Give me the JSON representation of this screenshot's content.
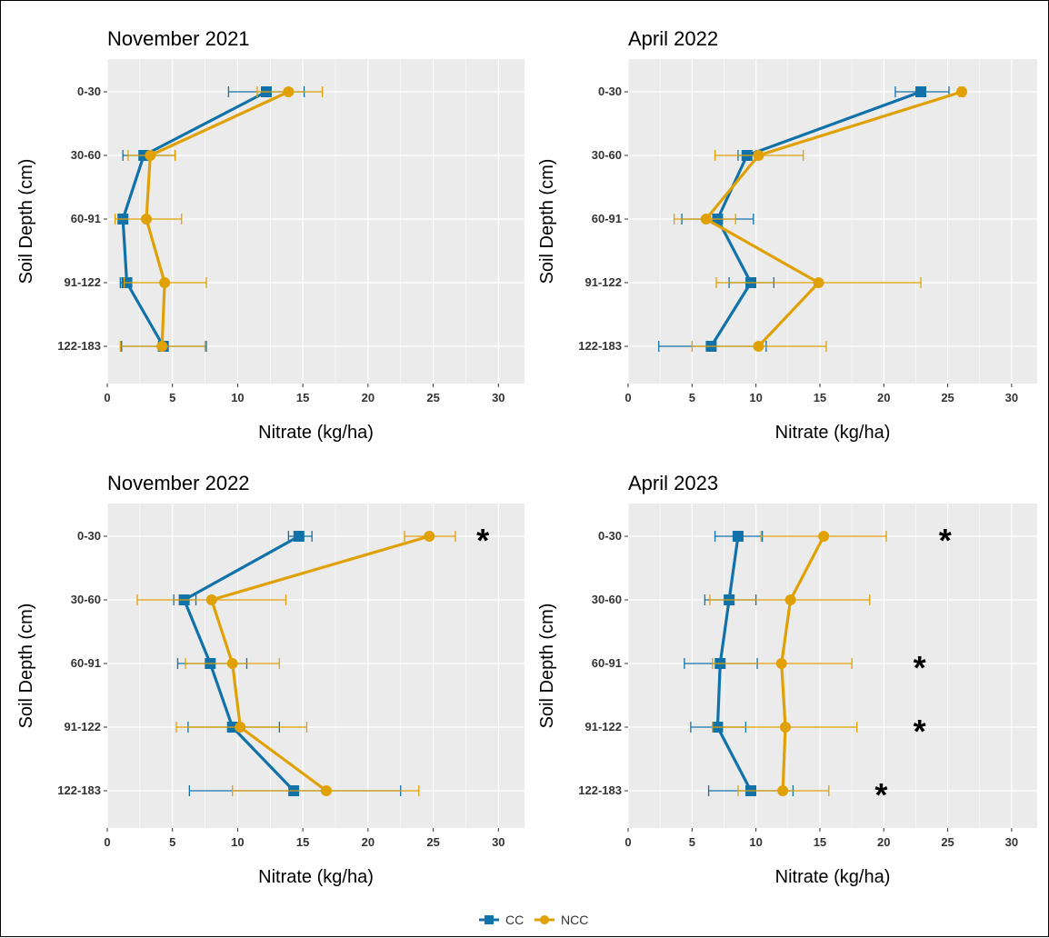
{
  "chart_data": [
    {
      "type": "line",
      "title": "November 2021",
      "xlabel": "Nitrate (kg/ha)",
      "ylabel": "Soil Depth (cm)",
      "xlim": [
        0,
        32
      ],
      "xticks": [
        "0",
        "5",
        "10",
        "15",
        "20",
        "25",
        "30"
      ],
      "categories": [
        "0-30",
        "30-60",
        "60-91",
        "91-122",
        "122-183"
      ],
      "grid": true,
      "series": [
        {
          "name": "CC",
          "values": [
            12.2,
            2.8,
            1.2,
            1.5,
            4.3
          ],
          "err_low": [
            9.3,
            1.2,
            0.9,
            1.0,
            1.1
          ],
          "err_high": [
            15.1,
            5.2,
            1.4,
            1.8,
            7.6
          ]
        },
        {
          "name": "NCC",
          "values": [
            13.9,
            3.3,
            3.0,
            4.4,
            4.2
          ],
          "err_low": [
            11.5,
            1.6,
            0.6,
            1.3,
            1.0
          ],
          "err_high": [
            16.5,
            5.2,
            5.7,
            7.6,
            7.5
          ]
        }
      ],
      "significance": []
    },
    {
      "type": "line",
      "title": "April 2022",
      "xlabel": "Nitrate (kg/ha)",
      "ylabel": "Soil Depth (cm)",
      "xlim": [
        0,
        32
      ],
      "xticks": [
        "0",
        "5",
        "10",
        "15",
        "20",
        "25",
        "30"
      ],
      "categories": [
        "0-30",
        "30-60",
        "60-91",
        "91-122",
        "122-183"
      ],
      "grid": true,
      "series": [
        {
          "name": "CC",
          "values": [
            22.9,
            9.3,
            7.0,
            9.6,
            6.5
          ],
          "err_low": [
            20.9,
            8.6,
            4.2,
            7.9,
            2.4
          ],
          "err_high": [
            25.1,
            10.0,
            9.8,
            11.4,
            10.8
          ]
        },
        {
          "name": "NCC",
          "values": [
            26.1,
            10.2,
            6.1,
            14.9,
            10.2
          ],
          "err_low": [
            25.9,
            6.8,
            3.6,
            6.9,
            5.0
          ],
          "err_high": [
            26.3,
            13.7,
            8.4,
            22.9,
            15.5
          ]
        }
      ],
      "significance": []
    },
    {
      "type": "line",
      "title": "November 2022",
      "xlabel": "Nitrate (kg/ha)",
      "ylabel": "Soil Depth (cm)",
      "xlim": [
        0,
        32
      ],
      "xticks": [
        "0",
        "5",
        "10",
        "15",
        "20",
        "25",
        "30"
      ],
      "categories": [
        "0-30",
        "30-60",
        "60-91",
        "91-122",
        "122-183"
      ],
      "grid": true,
      "series": [
        {
          "name": "CC",
          "values": [
            14.7,
            5.9,
            7.9,
            9.6,
            14.3
          ],
          "err_low": [
            13.9,
            5.1,
            5.4,
            6.2,
            6.3
          ],
          "err_high": [
            15.7,
            6.8,
            10.7,
            13.2,
            22.5
          ]
        },
        {
          "name": "NCC",
          "values": [
            24.7,
            8.0,
            9.6,
            10.2,
            16.8
          ],
          "err_low": [
            22.8,
            2.3,
            6.0,
            5.3,
            9.6
          ],
          "err_high": [
            26.7,
            13.7,
            13.2,
            15.3,
            23.9
          ]
        }
      ],
      "significance": [
        {
          "category": "0-30",
          "label": "*",
          "x": 28.8
        }
      ]
    },
    {
      "type": "line",
      "title": "April 2023",
      "xlabel": "Nitrate (kg/ha)",
      "ylabel": "Soil Depth (cm)",
      "xlim": [
        0,
        32
      ],
      "xticks": [
        "0",
        "5",
        "10",
        "15",
        "20",
        "25",
        "30"
      ],
      "categories": [
        "0-30",
        "30-60",
        "60-91",
        "91-122",
        "122-183"
      ],
      "grid": true,
      "series": [
        {
          "name": "CC",
          "values": [
            8.6,
            7.9,
            7.2,
            7.0,
            9.6
          ],
          "err_low": [
            6.8,
            6.0,
            4.4,
            4.9,
            6.3
          ],
          "err_high": [
            10.5,
            10.0,
            10.1,
            9.2,
            12.9
          ]
        },
        {
          "name": "NCC",
          "values": [
            15.3,
            12.7,
            12.0,
            12.3,
            12.1
          ],
          "err_low": [
            10.4,
            6.4,
            6.6,
            6.6,
            8.6
          ],
          "err_high": [
            20.2,
            18.9,
            17.5,
            17.9,
            15.7
          ]
        }
      ],
      "significance": [
        {
          "category": "0-30",
          "label": "*",
          "x": 24.8
        },
        {
          "category": "60-91",
          "label": "*",
          "x": 22.8
        },
        {
          "category": "91-122",
          "label": "*",
          "x": 22.8
        },
        {
          "category": "122-183",
          "label": "*",
          "x": 19.8
        }
      ]
    }
  ],
  "legend": {
    "position": "bottom",
    "items": [
      {
        "label": "CC",
        "color": "#1172a9",
        "marker": "square"
      },
      {
        "label": "NCC",
        "color": "#e0a106",
        "marker": "circle"
      }
    ]
  },
  "colors": {
    "panel_bg": "#ebebeb",
    "grid": "#ffffff",
    "cc": "#1172a9",
    "ncc": "#e0a106"
  }
}
